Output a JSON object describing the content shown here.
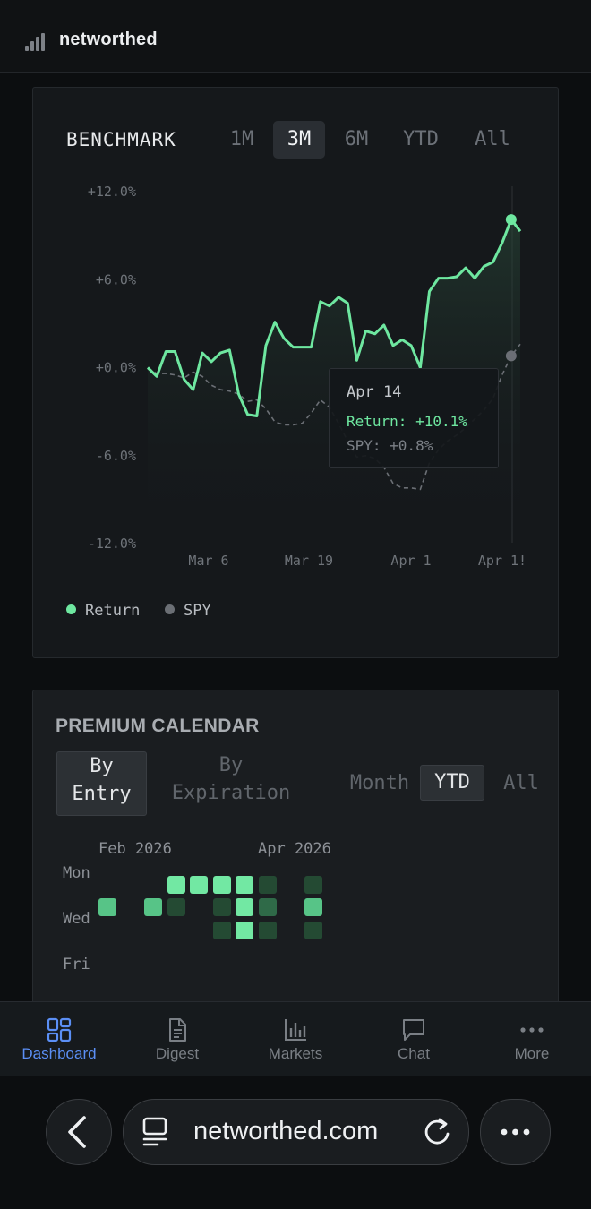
{
  "app": {
    "brand": "networthed"
  },
  "benchmark": {
    "title": "BENCHMARK",
    "ranges": [
      "1M",
      "3M",
      "6M",
      "YTD",
      "All"
    ],
    "active_range": "3M",
    "legend": [
      {
        "label": "Return",
        "color": "#6ee7a0"
      },
      {
        "label": "SPY",
        "color": "#6b6f75"
      }
    ],
    "tooltip": {
      "date": "Apr 14",
      "return": "Return: +10.1%",
      "spy": "SPY: +0.8%"
    }
  },
  "chart_data": {
    "type": "line",
    "title": "BENCHMARK",
    "x_tick_labels": [
      "Mar 6",
      "Mar 19",
      "Apr 1",
      "Apr 1!"
    ],
    "y_tick_labels": [
      "+12.0%",
      "+6.0%",
      "+0.0%",
      "-6.0%",
      "-12.0%"
    ],
    "ylim": [
      -12,
      12
    ],
    "grid": false,
    "legend": "bottom-left",
    "series": [
      {
        "name": "Return",
        "color": "#6ee7a0",
        "style": "solid",
        "values": [
          0.0,
          -0.6,
          1.1,
          1.1,
          -0.8,
          -1.5,
          1.0,
          0.4,
          1.0,
          1.2,
          -1.8,
          -3.2,
          -3.3,
          1.5,
          3.1,
          2.0,
          1.4,
          1.4,
          1.4,
          4.5,
          4.2,
          4.8,
          4.4,
          0.5,
          2.5,
          2.3,
          2.9,
          1.5,
          1.9,
          1.5,
          0.0,
          5.2,
          6.1,
          6.1,
          6.2,
          6.8,
          6.1,
          6.9,
          7.2,
          8.5,
          10.1,
          9.3
        ]
      },
      {
        "name": "SPY",
        "color": "#6b6f75",
        "style": "dashed",
        "values": [
          0.0,
          -0.4,
          -0.4,
          -0.5,
          -0.7,
          -0.3,
          -0.6,
          -1.2,
          -1.5,
          -1.6,
          -1.8,
          -2.3,
          -2.2,
          -2.8,
          -3.7,
          -3.9,
          -3.9,
          -3.8,
          -3.1,
          -2.2,
          -2.7,
          -3.8,
          -5.0,
          -6.1,
          -6.0,
          -6.2,
          -6.8,
          -7.9,
          -8.2,
          -8.2,
          -8.3,
          -6.5,
          -5.6,
          -5.0,
          -4.6,
          -4.1,
          -3.5,
          -2.9,
          -2.1,
          -0.5,
          0.8,
          1.6
        ]
      }
    ]
  },
  "calendar": {
    "title": "PREMIUM CALENDAR",
    "mode_options": [
      "By\nEntry",
      "By\nExpiration"
    ],
    "active_mode": "By Entry",
    "period_options": [
      "Month",
      "YTD",
      "All"
    ],
    "active_period": "YTD",
    "month_labels": [
      "Feb 2026",
      "Apr 2026"
    ],
    "day_labels": [
      "Mon",
      "Wed",
      "Fri"
    ],
    "level_colors": [
      "#244a33",
      "#2f6a48",
      "#57c487",
      "#72e8a3"
    ],
    "cells": [
      {
        "week": 0,
        "day": 2,
        "level": 2
      },
      {
        "week": 2,
        "day": 2,
        "level": 2
      },
      {
        "week": 3,
        "day": 1,
        "level": 3
      },
      {
        "week": 3,
        "day": 2,
        "level": 0
      },
      {
        "week": 4,
        "day": 1,
        "level": 3
      },
      {
        "week": 5,
        "day": 1,
        "level": 3
      },
      {
        "week": 5,
        "day": 2,
        "level": 0
      },
      {
        "week": 5,
        "day": 3,
        "level": 0
      },
      {
        "week": 6,
        "day": 1,
        "level": 3
      },
      {
        "week": 6,
        "day": 2,
        "level": 3
      },
      {
        "week": 6,
        "day": 3,
        "level": 3
      },
      {
        "week": 7,
        "day": 1,
        "level": 0
      },
      {
        "week": 7,
        "day": 2,
        "level": 1
      },
      {
        "week": 7,
        "day": 3,
        "level": 0
      },
      {
        "week": 9,
        "day": 1,
        "level": 0
      },
      {
        "week": 9,
        "day": 2,
        "level": 2
      },
      {
        "week": 9,
        "day": 3,
        "level": 0
      }
    ]
  },
  "nav": {
    "items": [
      {
        "label": "Dashboard",
        "icon": "dashboard-icon",
        "active": true
      },
      {
        "label": "Digest",
        "icon": "document-icon",
        "active": false
      },
      {
        "label": "Markets",
        "icon": "bar-chart-icon",
        "active": false
      },
      {
        "label": "Chat",
        "icon": "chat-icon",
        "active": false
      },
      {
        "label": "More",
        "icon": "more-dots-icon",
        "active": false
      }
    ]
  },
  "browser": {
    "url": "networthed.com"
  }
}
